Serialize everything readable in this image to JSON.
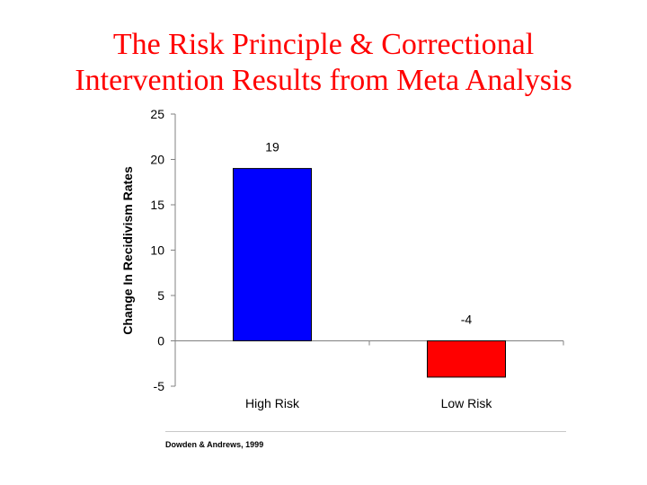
{
  "slide": {
    "title_line1": "The Risk Principle & Correctional",
    "title_line2": "Intervention Results from Meta Analysis",
    "source_note": "Dowden & Andrews, 1999"
  },
  "colors": {
    "title": "#ff0000",
    "high_risk_bar": "#0000ff",
    "low_risk_bar": "#ff0000"
  },
  "chart_data": {
    "type": "bar",
    "title": "",
    "xlabel": "",
    "ylabel": "Change In Recidivism Rates",
    "categories": [
      "High Risk",
      "Low Risk"
    ],
    "values": [
      19,
      -4
    ],
    "data_labels": [
      "19",
      "-4"
    ],
    "bar_colors": [
      "#0000ff",
      "#ff0000"
    ],
    "ylim": [
      -5,
      25
    ],
    "yticks": [
      -5,
      0,
      5,
      10,
      15,
      20,
      25
    ],
    "grid": false,
    "legend": "none"
  }
}
